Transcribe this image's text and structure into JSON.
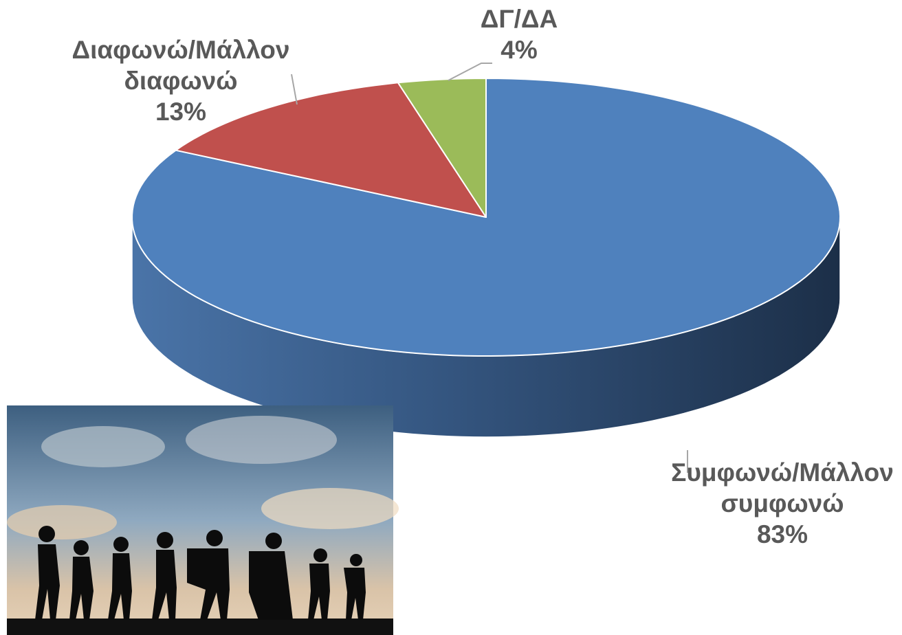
{
  "chart_data": {
    "type": "pie",
    "categories": [
      "Συμφωνώ/Μάλλον συμφωνώ",
      "Διαφωνώ/Μάλλον διαφωνώ",
      "ΔΓ/ΔΑ"
    ],
    "values": [
      83,
      13,
      4
    ],
    "value_labels": [
      "83%",
      "13%",
      "4%"
    ],
    "colors": [
      "#4f81bd",
      "#c0504d",
      "#9bbb59"
    ]
  }
}
